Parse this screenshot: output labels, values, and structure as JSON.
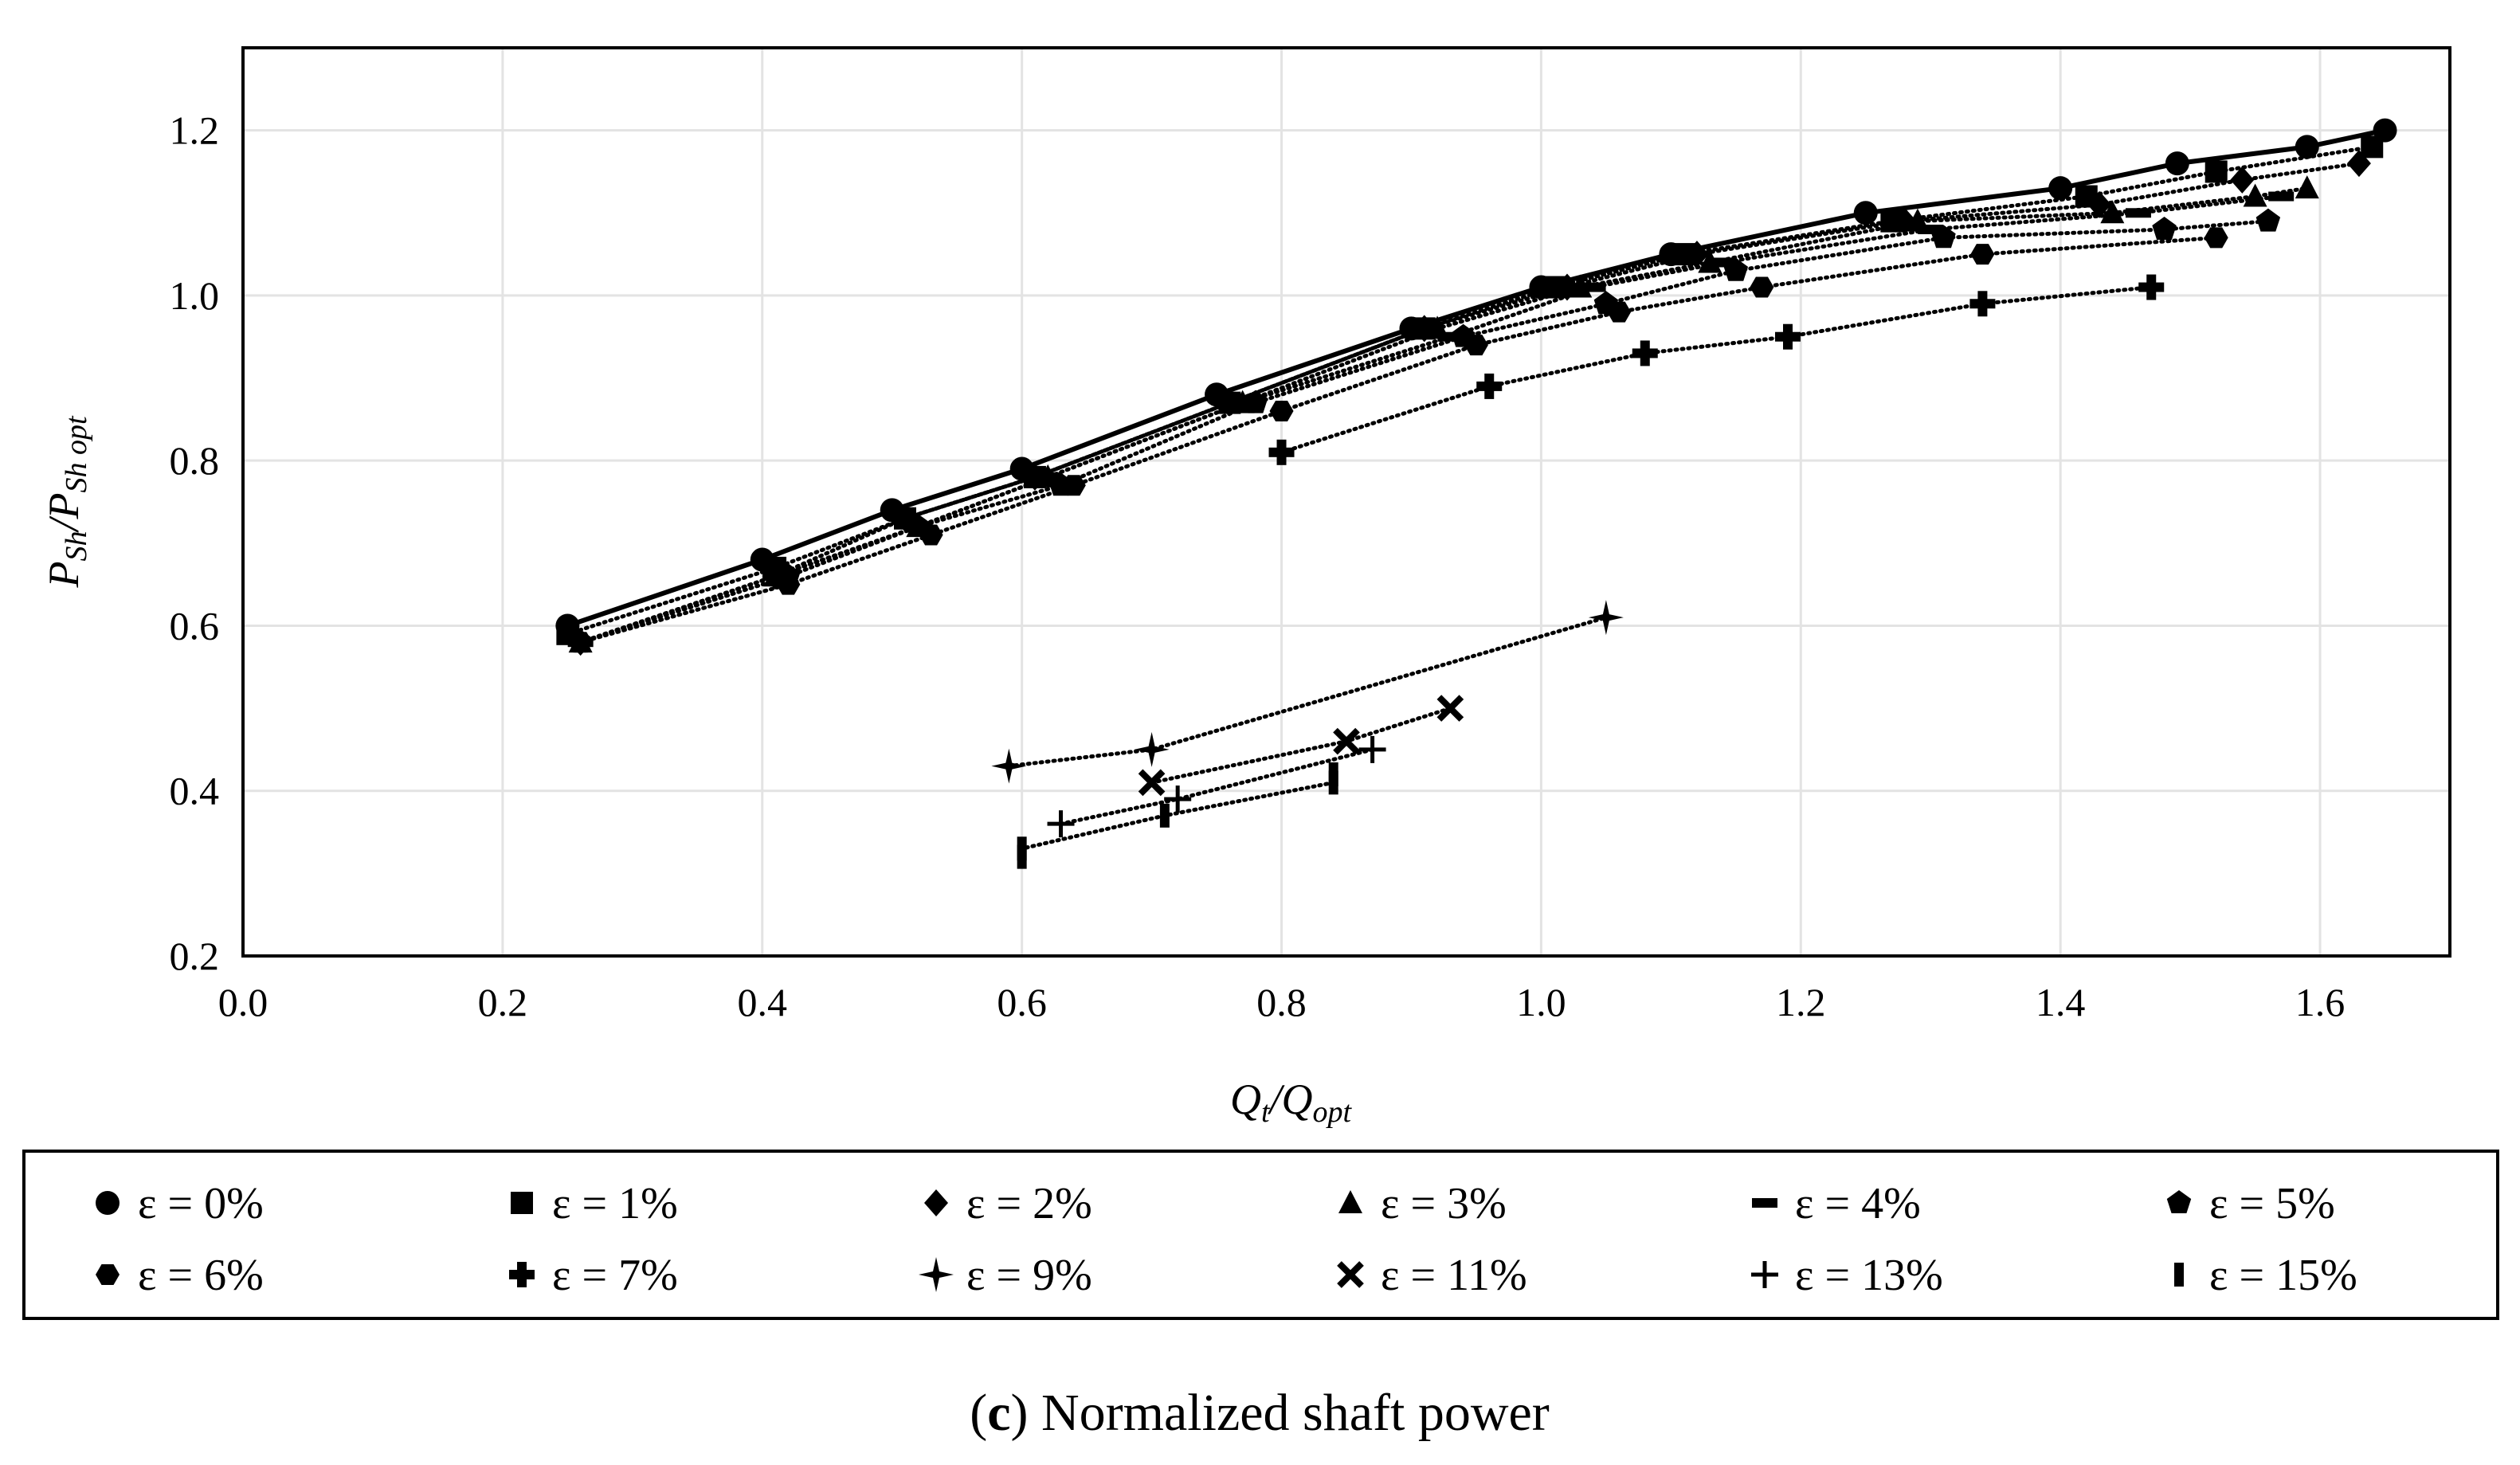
{
  "chart_data": {
    "type": "scatter",
    "xlabel": "Q_t/Q_opt",
    "ylabel": "P_Sh/P_Sh opt",
    "xlim": [
      0.0,
      1.7
    ],
    "ylim": [
      0.2,
      1.3
    ],
    "x_ticks": [
      "0.0",
      "0.2",
      "0.4",
      "0.6",
      "0.8",
      "1.0",
      "1.2",
      "1.4",
      "1.6"
    ],
    "y_ticks": [
      "0.2",
      "0.4",
      "0.6",
      "0.8",
      "1.0",
      "1.2"
    ],
    "grid": true,
    "legend_position": "bottom",
    "caption": {
      "label": "c",
      "text": "Normalized shaft power"
    },
    "series": [
      {
        "name": "ε = 0%",
        "eps": "0%",
        "marker": "circle",
        "line": "solid",
        "x": [
          0.25,
          0.4,
          0.5,
          0.6,
          0.75,
          0.9,
          1.0,
          1.1,
          1.25,
          1.4,
          1.49,
          1.59,
          1.65
        ],
        "y": [
          0.6,
          0.68,
          0.74,
          0.79,
          0.88,
          0.96,
          1.01,
          1.05,
          1.1,
          1.13,
          1.16,
          1.18,
          1.2
        ]
      },
      {
        "name": "ε = 1%",
        "eps": "1%",
        "marker": "square",
        "line": "dotted",
        "x": [
          0.25,
          0.41,
          0.51,
          0.61,
          0.76,
          0.91,
          1.01,
          1.11,
          1.27,
          1.42,
          1.52,
          1.64
        ],
        "y": [
          0.59,
          0.67,
          0.73,
          0.78,
          0.87,
          0.96,
          1.01,
          1.05,
          1.09,
          1.12,
          1.15,
          1.18
        ]
      },
      {
        "name": "ε = 2%",
        "eps": "2%",
        "marker": "diamond",
        "line": "dotted",
        "x": [
          0.26,
          0.41,
          0.51,
          0.61,
          0.76,
          0.91,
          1.02,
          1.12,
          1.28,
          1.43,
          1.54,
          1.63
        ],
        "y": [
          0.58,
          0.66,
          0.73,
          0.78,
          0.87,
          0.96,
          1.01,
          1.05,
          1.09,
          1.11,
          1.14,
          1.16
        ]
      },
      {
        "name": "ε = 3%",
        "eps": "3%",
        "marker": "triangle",
        "line": "dotted",
        "x": [
          0.26,
          0.41,
          0.52,
          0.62,
          0.77,
          0.92,
          1.03,
          1.13,
          1.29,
          1.44,
          1.55,
          1.59
        ],
        "y": [
          0.58,
          0.66,
          0.72,
          0.78,
          0.87,
          0.96,
          1.01,
          1.04,
          1.09,
          1.1,
          1.12,
          1.13
        ]
      },
      {
        "name": "ε = 4%",
        "eps": "4%",
        "marker": "dash",
        "line": "dotted",
        "x": [
          0.26,
          0.41,
          0.52,
          0.62,
          0.77,
          0.93,
          1.04,
          1.14,
          1.3,
          1.46,
          1.57
        ],
        "y": [
          0.58,
          0.66,
          0.72,
          0.78,
          0.87,
          0.95,
          1.01,
          1.04,
          1.08,
          1.1,
          1.12
        ]
      },
      {
        "name": "ε = 5%",
        "eps": "5%",
        "marker": "pentagon",
        "line": "dotted",
        "x": [
          0.26,
          0.42,
          0.52,
          0.63,
          0.78,
          0.94,
          1.05,
          1.15,
          1.31,
          1.48,
          1.56
        ],
        "y": [
          0.58,
          0.66,
          0.72,
          0.77,
          0.87,
          0.95,
          0.99,
          1.03,
          1.07,
          1.08,
          1.09
        ]
      },
      {
        "name": "ε = 6%",
        "eps": "6%",
        "marker": "hexagon",
        "line": "dotted",
        "x": [
          0.26,
          0.42,
          0.53,
          0.64,
          0.8,
          0.95,
          1.06,
          1.17,
          1.34,
          1.52
        ],
        "y": [
          0.58,
          0.65,
          0.71,
          0.77,
          0.86,
          0.94,
          0.98,
          1.01,
          1.05,
          1.07
        ]
      },
      {
        "name": "ε = 7%",
        "eps": "7%",
        "marker": "plus-bold",
        "line": "dotted",
        "x": [
          0.8,
          0.96,
          1.08,
          1.19,
          1.34,
          1.47
        ],
        "y": [
          0.81,
          0.89,
          0.93,
          0.95,
          0.99,
          1.01
        ]
      },
      {
        "name": "ε = 9%",
        "eps": "9%",
        "marker": "star4",
        "line": "dotted",
        "x": [
          0.59,
          0.7,
          1.05
        ],
        "y": [
          0.43,
          0.45,
          0.61
        ]
      },
      {
        "name": "ε = 11%",
        "eps": "11%",
        "marker": "x",
        "line": "dotted",
        "x": [
          0.7,
          0.85,
          0.93
        ],
        "y": [
          0.41,
          0.46,
          0.5
        ]
      },
      {
        "name": "ε = 13%",
        "eps": "13%",
        "marker": "plus-thin",
        "line": "dotted",
        "x": [
          0.63,
          0.72,
          0.87
        ],
        "y": [
          0.36,
          0.39,
          0.45
        ]
      },
      {
        "name": "ε = 15%",
        "eps": "15%",
        "marker": "bar",
        "line": "dotted",
        "x": [
          0.6,
          0.6,
          0.71,
          0.84,
          0.84
        ],
        "y": [
          0.32,
          0.33,
          0.37,
          0.41,
          0.42
        ]
      }
    ]
  }
}
